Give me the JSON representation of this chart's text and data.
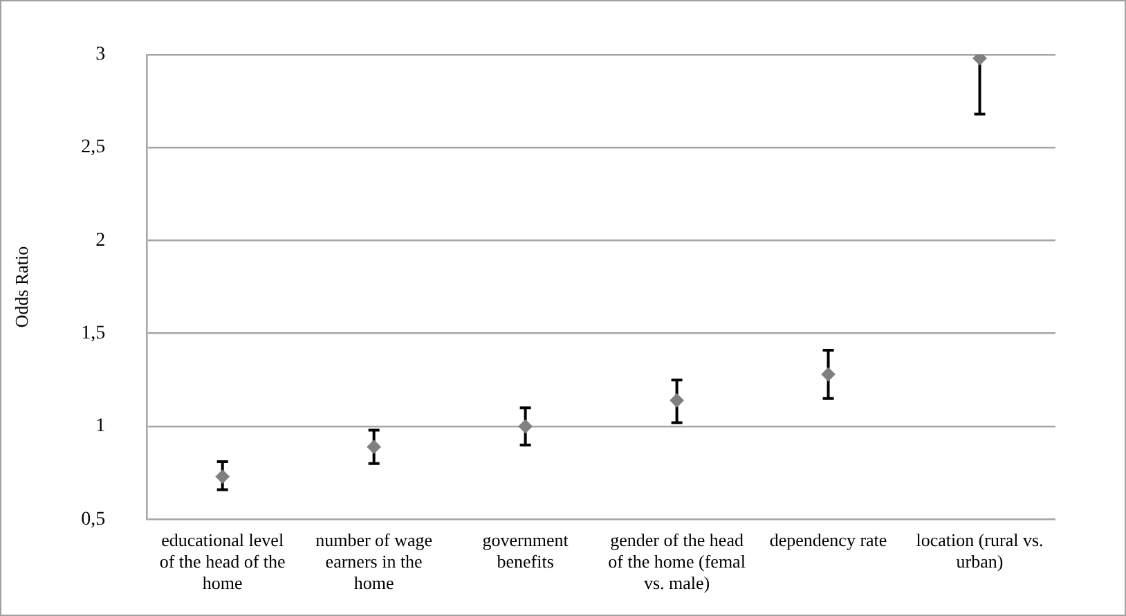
{
  "chart_data": {
    "type": "scatter",
    "ylabel": "Odds Ratio",
    "categories": [
      "educational level of the head of the home",
      "number of wage earners in the home",
      "government benefits",
      "gender of the head of the home (femal vs. male)",
      "dependency rate",
      "location (rural vs. urban)"
    ],
    "series": [
      {
        "color": "#808080",
        "values": [
          0.73,
          0.89,
          1.0,
          1.14,
          1.28,
          2.98
        ],
        "errors": [
          [
            0.66,
            0.81
          ],
          [
            0.8,
            0.98
          ],
          [
            0.9,
            1.1
          ],
          [
            1.02,
            1.25
          ],
          [
            1.15,
            1.41
          ],
          [
            2.68,
            2.98
          ]
        ]
      }
    ],
    "ylim": [
      0.5,
      3
    ],
    "yticks": [
      {
        "value": 0.5,
        "label": "0,5"
      },
      1,
      {
        "value": 1.5,
        "label": "1,5"
      },
      2,
      {
        "value": 2.5,
        "label": "2,5"
      },
      3
    ],
    "grid": "y",
    "legend": false,
    "marker": "diamond"
  }
}
